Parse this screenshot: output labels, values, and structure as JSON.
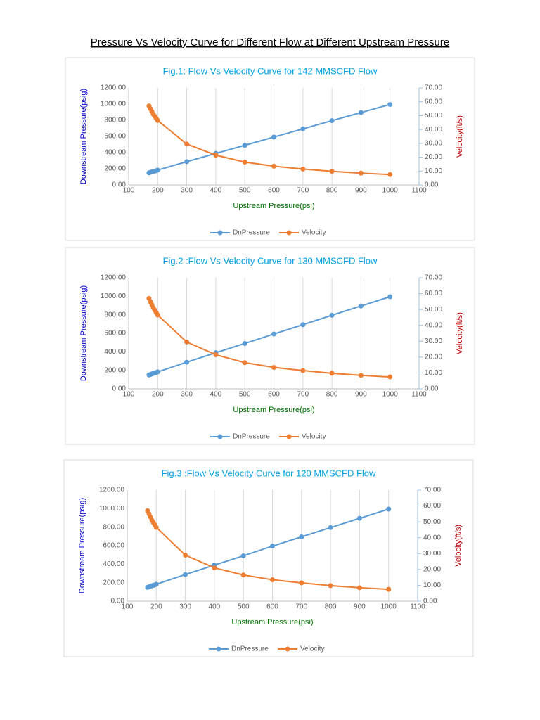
{
  "title": "Pressure Vs Velocity Curve for Different Flow at Different Upstream Pressure",
  "chart_data": [
    {
      "type": "line",
      "title": "Fig.1: Flow Vs Velocity Curve for 142 MMSCFD Flow",
      "xlabel": "Upstream Pressure(psi)",
      "ylabel": "Downstream Pressure(psig)",
      "y2label": "Velocity(ft/s)",
      "x": [
        170,
        175,
        180,
        185,
        190,
        195,
        200,
        300,
        400,
        500,
        600,
        700,
        800,
        900,
        1000
      ],
      "series": [
        {
          "name": "DnPressure",
          "color": "#5b9bd5",
          "values": [
            150,
            155,
            161,
            166,
            171,
            176,
            183,
            288,
            390,
            490,
            592,
            693,
            795,
            895,
            995
          ]
        },
        {
          "name": "Velocity",
          "color": "#ed7d31",
          "axis": "y2",
          "values": [
            57,
            55,
            53,
            51,
            49.5,
            48,
            46.5,
            29.5,
            21.5,
            16.5,
            13.5,
            11.5,
            9.8,
            8.5,
            7.5
          ]
        }
      ],
      "xlim": [
        100,
        1100
      ],
      "xticks": [
        100,
        200,
        300,
        400,
        500,
        600,
        700,
        800,
        900,
        1000,
        1100
      ],
      "ylim": [
        0,
        1200
      ],
      "yticks": [
        {
          "value": 0,
          "label": "0.00"
        },
        {
          "value": 200,
          "label": "200.00"
        },
        {
          "value": 400,
          "label": "400.00"
        },
        {
          "value": 600,
          "label": "600.00"
        },
        {
          "value": 800,
          "label": "800.00"
        },
        {
          "value": 1000,
          "label": "1000.00"
        },
        {
          "value": 1200,
          "label": "1200.00"
        }
      ],
      "y2lim": [
        0,
        70
      ],
      "y2ticks": [
        {
          "value": 0,
          "label": "0.00"
        },
        {
          "value": 10,
          "label": "10.00"
        },
        {
          "value": 20,
          "label": "20.00"
        },
        {
          "value": 30,
          "label": "30.00"
        },
        {
          "value": 40,
          "label": "40.00"
        },
        {
          "value": 50,
          "label": "50.00"
        },
        {
          "value": 60,
          "label": "60.00"
        },
        {
          "value": 70,
          "label": "70.00"
        }
      ],
      "grid": "x",
      "legend": "bottom"
    },
    {
      "type": "line",
      "title": "Fig.2 :Flow Vs Velocity Curve for 130 MMSCFD Flow",
      "xlabel": "Upstream Pressure(psi)",
      "ylabel": "Downstream Pressure(psig)",
      "y2label": "Velocity(ft/s)",
      "x": [
        170,
        175,
        180,
        185,
        190,
        195,
        200,
        300,
        400,
        500,
        600,
        700,
        800,
        900,
        1000
      ],
      "series": [
        {
          "name": "DnPressure",
          "color": "#5b9bd5",
          "values": [
            150,
            155,
            161,
            166,
            171,
            176,
            183,
            288,
            390,
            490,
            592,
            693,
            795,
            895,
            995
          ]
        },
        {
          "name": "Velocity",
          "color": "#ed7d31",
          "axis": "y2",
          "values": [
            57,
            55,
            53,
            51,
            49.5,
            48,
            46.5,
            29.5,
            21.5,
            16.5,
            13.5,
            11.5,
            9.8,
            8.5,
            7.5
          ]
        }
      ],
      "xlim": [
        100,
        1100
      ],
      "xticks": [
        100,
        200,
        300,
        400,
        500,
        600,
        700,
        800,
        900,
        1000,
        1100
      ],
      "ylim": [
        0,
        1200
      ],
      "yticks": [
        {
          "value": 0,
          "label": "0.00"
        },
        {
          "value": 200,
          "label": "200.00"
        },
        {
          "value": 400,
          "label": "400.00"
        },
        {
          "value": 600,
          "label": "600.00"
        },
        {
          "value": 800,
          "label": "800.00"
        },
        {
          "value": 1000,
          "label": "1000.00"
        },
        {
          "value": 1200,
          "label": "1200.00"
        }
      ],
      "y2lim": [
        0,
        70
      ],
      "y2ticks": [
        {
          "value": 0,
          "label": "0.00"
        },
        {
          "value": 10,
          "label": "10.00"
        },
        {
          "value": 20,
          "label": "20.00"
        },
        {
          "value": 30,
          "label": "30.00"
        },
        {
          "value": 40,
          "label": "40.00"
        },
        {
          "value": 50,
          "label": "50.00"
        },
        {
          "value": 60,
          "label": "60.00"
        },
        {
          "value": 70,
          "label": "70.00"
        }
      ],
      "grid": "x",
      "legend": "bottom"
    },
    {
      "type": "line",
      "title": "Fig.3 :Flow Vs Velocity Curve for 120 MMSCFD Flow",
      "xlabel": "Upstream Pressure(psi)",
      "ylabel": "Downstream Pressure(psig)",
      "y2label": "Velocity(ft/s)",
      "x": [
        170,
        175,
        180,
        185,
        190,
        195,
        200,
        300,
        400,
        500,
        600,
        700,
        800,
        900,
        1000
      ],
      "series": [
        {
          "name": "DnPressure",
          "color": "#5b9bd5",
          "values": [
            150,
            155,
            161,
            166,
            171,
            176,
            183,
            288,
            390,
            490,
            595,
            695,
            795,
            895,
            995
          ]
        },
        {
          "name": "Velocity",
          "color": "#ed7d31",
          "axis": "y2",
          "values": [
            57,
            55,
            53,
            51,
            49.5,
            48,
            46.5,
            29,
            21,
            16.5,
            13.5,
            11.5,
            9.8,
            8.5,
            7.5
          ]
        }
      ],
      "xlim": [
        100,
        1100
      ],
      "xticks": [
        100,
        200,
        300,
        400,
        500,
        600,
        700,
        800,
        900,
        1000,
        1100
      ],
      "ylim": [
        0,
        1200
      ],
      "yticks": [
        {
          "value": 0,
          "label": "0.00"
        },
        {
          "value": 200,
          "label": "200.00"
        },
        {
          "value": 400,
          "label": "400.00"
        },
        {
          "value": 600,
          "label": "600.00"
        },
        {
          "value": 800,
          "label": "800.00"
        },
        {
          "value": 1000,
          "label": "1000.00"
        },
        {
          "value": 1200,
          "label": "1200.00"
        }
      ],
      "y2lim": [
        0,
        70
      ],
      "y2ticks": [
        {
          "value": 0,
          "label": "0.00"
        },
        {
          "value": 10,
          "label": "10.00"
        },
        {
          "value": 20,
          "label": "20.00"
        },
        {
          "value": 30,
          "label": "30.00"
        },
        {
          "value": 40,
          "label": "40.00"
        },
        {
          "value": 50,
          "label": "50.00"
        },
        {
          "value": 60,
          "label": "60.00"
        },
        {
          "value": 70,
          "label": "70.00"
        }
      ],
      "grid": "x",
      "legend": "bottom"
    }
  ]
}
